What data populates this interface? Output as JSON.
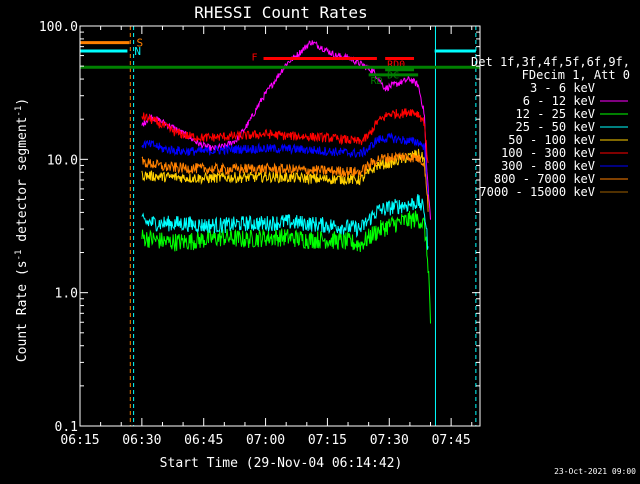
{
  "chart_data": {
    "type": "line",
    "title": "RHESSI Count Rates",
    "xlabel": "Start Time (29-Nov-04 06:14:42)",
    "ylabel_parts": [
      "Count Rate (s",
      "-1",
      " detector segment",
      "-1",
      ")"
    ],
    "y_scale": "log",
    "ylim": [
      0.1,
      100.0
    ],
    "yticks": [
      {
        "value": 0.1,
        "label": "0.1"
      },
      {
        "value": 1.0,
        "label": "1.0"
      },
      {
        "value": 10.0,
        "label": "10.0"
      },
      {
        "value": 100.0,
        "label": "100.0"
      }
    ],
    "xlim_minutes": [
      0,
      97
    ],
    "xticks": [
      {
        "value": 0,
        "label": "06:15"
      },
      {
        "value": 15,
        "label": "06:30"
      },
      {
        "value": 30,
        "label": "06:45"
      },
      {
        "value": 45,
        "label": "07:00"
      },
      {
        "value": 60,
        "label": "07:15"
      },
      {
        "value": 75,
        "label": "07:30"
      },
      {
        "value": 90,
        "label": "07:45"
      }
    ],
    "legend_header": [
      "Det 1f,3f,4f,5f,6f,9f,",
      "FDecim 1, Att 0"
    ],
    "series": [
      {
        "name": "3 - 6 keV",
        "color": "#000000",
        "points": [
          [
            15,
            17
          ],
          [
            17,
            20
          ],
          [
            20,
            19
          ],
          [
            23,
            18
          ],
          [
            26,
            15
          ],
          [
            29,
            12
          ],
          [
            32,
            10.5
          ],
          [
            35,
            11
          ],
          [
            38,
            13
          ],
          [
            41,
            18
          ],
          [
            44,
            27
          ],
          [
            47,
            40
          ],
          [
            50,
            58
          ],
          [
            53,
            72
          ],
          [
            56,
            85
          ],
          [
            59,
            88
          ],
          [
            62,
            82
          ],
          [
            65,
            78
          ],
          [
            68,
            75
          ],
          [
            71,
            60
          ],
          [
            74,
            50
          ],
          [
            77,
            40
          ],
          [
            80,
            35
          ],
          [
            82,
            28
          ],
          [
            83.5,
            18
          ],
          [
            84,
            8
          ],
          [
            85,
            3
          ]
        ]
      },
      {
        "name": "6 - 12 keV",
        "color": "#ff00ff",
        "points": [
          [
            15,
            18
          ],
          [
            17,
            21
          ],
          [
            20,
            19
          ],
          [
            23,
            17
          ],
          [
            26,
            15
          ],
          [
            29,
            13
          ],
          [
            32,
            12
          ],
          [
            35,
            12.5
          ],
          [
            38,
            14
          ],
          [
            41,
            19
          ],
          [
            44,
            28
          ],
          [
            47,
            38
          ],
          [
            50,
            52
          ],
          [
            53,
            62
          ],
          [
            56,
            76
          ],
          [
            59,
            68
          ],
          [
            62,
            60
          ],
          [
            65,
            58
          ],
          [
            68,
            52
          ],
          [
            71,
            46
          ],
          [
            72,
            42
          ],
          [
            74,
            34
          ],
          [
            76,
            36
          ],
          [
            78,
            38
          ],
          [
            80,
            40
          ],
          [
            82,
            36
          ],
          [
            83.5,
            22
          ],
          [
            84,
            9
          ],
          [
            85,
            3.5
          ]
        ]
      },
      {
        "name": "12 - 25 keV",
        "color": "#00ff00",
        "points": [
          [
            15,
            2.6
          ],
          [
            18,
            2.5
          ],
          [
            21,
            2.4
          ],
          [
            25,
            2.4
          ],
          [
            30,
            2.5
          ],
          [
            35,
            2.6
          ],
          [
            40,
            2.5
          ],
          [
            45,
            2.6
          ],
          [
            50,
            2.6
          ],
          [
            55,
            2.5
          ],
          [
            60,
            2.5
          ],
          [
            65,
            2.4
          ],
          [
            68,
            2.3
          ],
          [
            72,
            2.9
          ],
          [
            75,
            3.2
          ],
          [
            78,
            3.4
          ],
          [
            80,
            3.5
          ],
          [
            82,
            3.6
          ],
          [
            83.5,
            3.2
          ],
          [
            84.5,
            1.5
          ],
          [
            85,
            0.6
          ]
        ]
      },
      {
        "name": "25 - 50 keV",
        "color": "#00ffff",
        "points": [
          [
            15,
            3.4
          ],
          [
            20,
            3.3
          ],
          [
            25,
            3.3
          ],
          [
            30,
            3.2
          ],
          [
            35,
            3.2
          ],
          [
            40,
            3.3
          ],
          [
            45,
            3.3
          ],
          [
            50,
            3.4
          ],
          [
            55,
            3.3
          ],
          [
            60,
            3.2
          ],
          [
            65,
            3.1
          ],
          [
            68,
            3.0
          ],
          [
            72,
            4.1
          ],
          [
            76,
            4.4
          ],
          [
            80,
            4.6
          ],
          [
            82,
            4.8
          ],
          [
            83.5,
            4.2
          ],
          [
            84.5,
            2.0
          ]
        ]
      },
      {
        "name": "50 - 100 keV",
        "color": "#ffd000",
        "points": [
          [
            15,
            7.6
          ],
          [
            20,
            7.4
          ],
          [
            25,
            7.3
          ],
          [
            30,
            7.2
          ],
          [
            35,
            7.3
          ],
          [
            40,
            7.3
          ],
          [
            45,
            7.4
          ],
          [
            50,
            7.3
          ],
          [
            55,
            7.2
          ],
          [
            60,
            7.1
          ],
          [
            65,
            7.1
          ],
          [
            68,
            7.0
          ],
          [
            72,
            9.0
          ],
          [
            76,
            9.5
          ],
          [
            80,
            10.5
          ],
          [
            82,
            11.0
          ],
          [
            83.5,
            10
          ],
          [
            84.5,
            4
          ]
        ]
      },
      {
        "name": "100 - 300 keV",
        "color": "#ff0000",
        "points": [
          [
            15,
            21
          ],
          [
            17,
            20
          ],
          [
            20,
            18
          ],
          [
            23,
            16
          ],
          [
            26,
            15
          ],
          [
            30,
            14.5
          ],
          [
            35,
            14.8
          ],
          [
            40,
            15
          ],
          [
            45,
            15.5
          ],
          [
            50,
            15
          ],
          [
            55,
            14.8
          ],
          [
            60,
            14.5
          ],
          [
            65,
            14
          ],
          [
            68,
            13.5
          ],
          [
            70,
            15
          ],
          [
            72,
            19
          ],
          [
            75,
            22
          ],
          [
            78,
            22
          ],
          [
            80,
            23
          ],
          [
            82,
            22
          ],
          [
            83.5,
            19
          ],
          [
            84.5,
            8
          ]
        ]
      },
      {
        "name": "300 - 800 keV",
        "color": "#0000ff",
        "points": [
          [
            15,
            13
          ],
          [
            18,
            12.8
          ],
          [
            20,
            12
          ],
          [
            25,
            11.5
          ],
          [
            30,
            11.5
          ],
          [
            35,
            11.8
          ],
          [
            40,
            12
          ],
          [
            45,
            12
          ],
          [
            50,
            12
          ],
          [
            55,
            11.8
          ],
          [
            60,
            11.5
          ],
          [
            65,
            11.2
          ],
          [
            68,
            11.0
          ],
          [
            70,
            12
          ],
          [
            72,
            14
          ],
          [
            75,
            14.5
          ],
          [
            78,
            14
          ],
          [
            80,
            13.6
          ],
          [
            82,
            13.5
          ],
          [
            83.5,
            12.5
          ],
          [
            84.5,
            5
          ]
        ]
      },
      {
        "name": "800 - 7000 keV",
        "color": "#ff8000",
        "points": [
          [
            15,
            9.5
          ],
          [
            18,
            9.2
          ],
          [
            20,
            8.8
          ],
          [
            25,
            8.6
          ],
          [
            30,
            8.5
          ],
          [
            35,
            8.4
          ],
          [
            40,
            8.5
          ],
          [
            45,
            8.5
          ],
          [
            50,
            8.4
          ],
          [
            55,
            8.3
          ],
          [
            60,
            8.2
          ],
          [
            65,
            8.1
          ],
          [
            68,
            8.0
          ],
          [
            70,
            9
          ],
          [
            72,
            10
          ],
          [
            75,
            10.3
          ],
          [
            78,
            10.5
          ],
          [
            80,
            10.4
          ],
          [
            82,
            10.2
          ],
          [
            83.5,
            9.5
          ],
          [
            84.5,
            4
          ]
        ]
      },
      {
        "name": "7000 - 15000 keV",
        "color": "#a06000",
        "points": []
      }
    ],
    "attenuator_bars": [
      {
        "label": "S",
        "color": "#ff8000",
        "x_start": 0,
        "x_end": 12,
        "y": 75
      },
      {
        "label": "N",
        "color": "#00ffff",
        "x_start": 0,
        "x_end": 11.5,
        "y": 65
      },
      {
        "label": "",
        "color": "#00ffff",
        "x_start": 86,
        "x_end": 96,
        "y": 65
      }
    ],
    "flag_bars": [
      {
        "label": "F",
        "color": "#ff0000",
        "x_start": 44.5,
        "x_end": 72,
        "y": 57
      },
      {
        "label": "RD0",
        "color": "#ff0000",
        "x_start": 74,
        "x_end": 81,
        "y": 57
      },
      {
        "label": "",
        "color": "#008000",
        "x_start": 0,
        "x_end": 97,
        "y": 49
      },
      {
        "label": "RD",
        "color": "#008000",
        "x_start": 70,
        "x_end": 82,
        "y": 43
      },
      {
        "label": "DC",
        "color": "#008000",
        "x_start": 74,
        "x_end": 81,
        "y": 47
      }
    ],
    "vlines": [
      {
        "x": 0,
        "color": "#00ffff",
        "dashed": false
      },
      {
        "x": 12.2,
        "color": "#ff8000",
        "dashed": true
      },
      {
        "x": 13,
        "color": "#00ffff",
        "dashed": true
      },
      {
        "x": 86.2,
        "color": "#00ffff",
        "dashed": false
      },
      {
        "x": 96,
        "color": "#00ffff",
        "dashed": true
      }
    ],
    "footer_date": "23-Oct-2021 09:00"
  }
}
